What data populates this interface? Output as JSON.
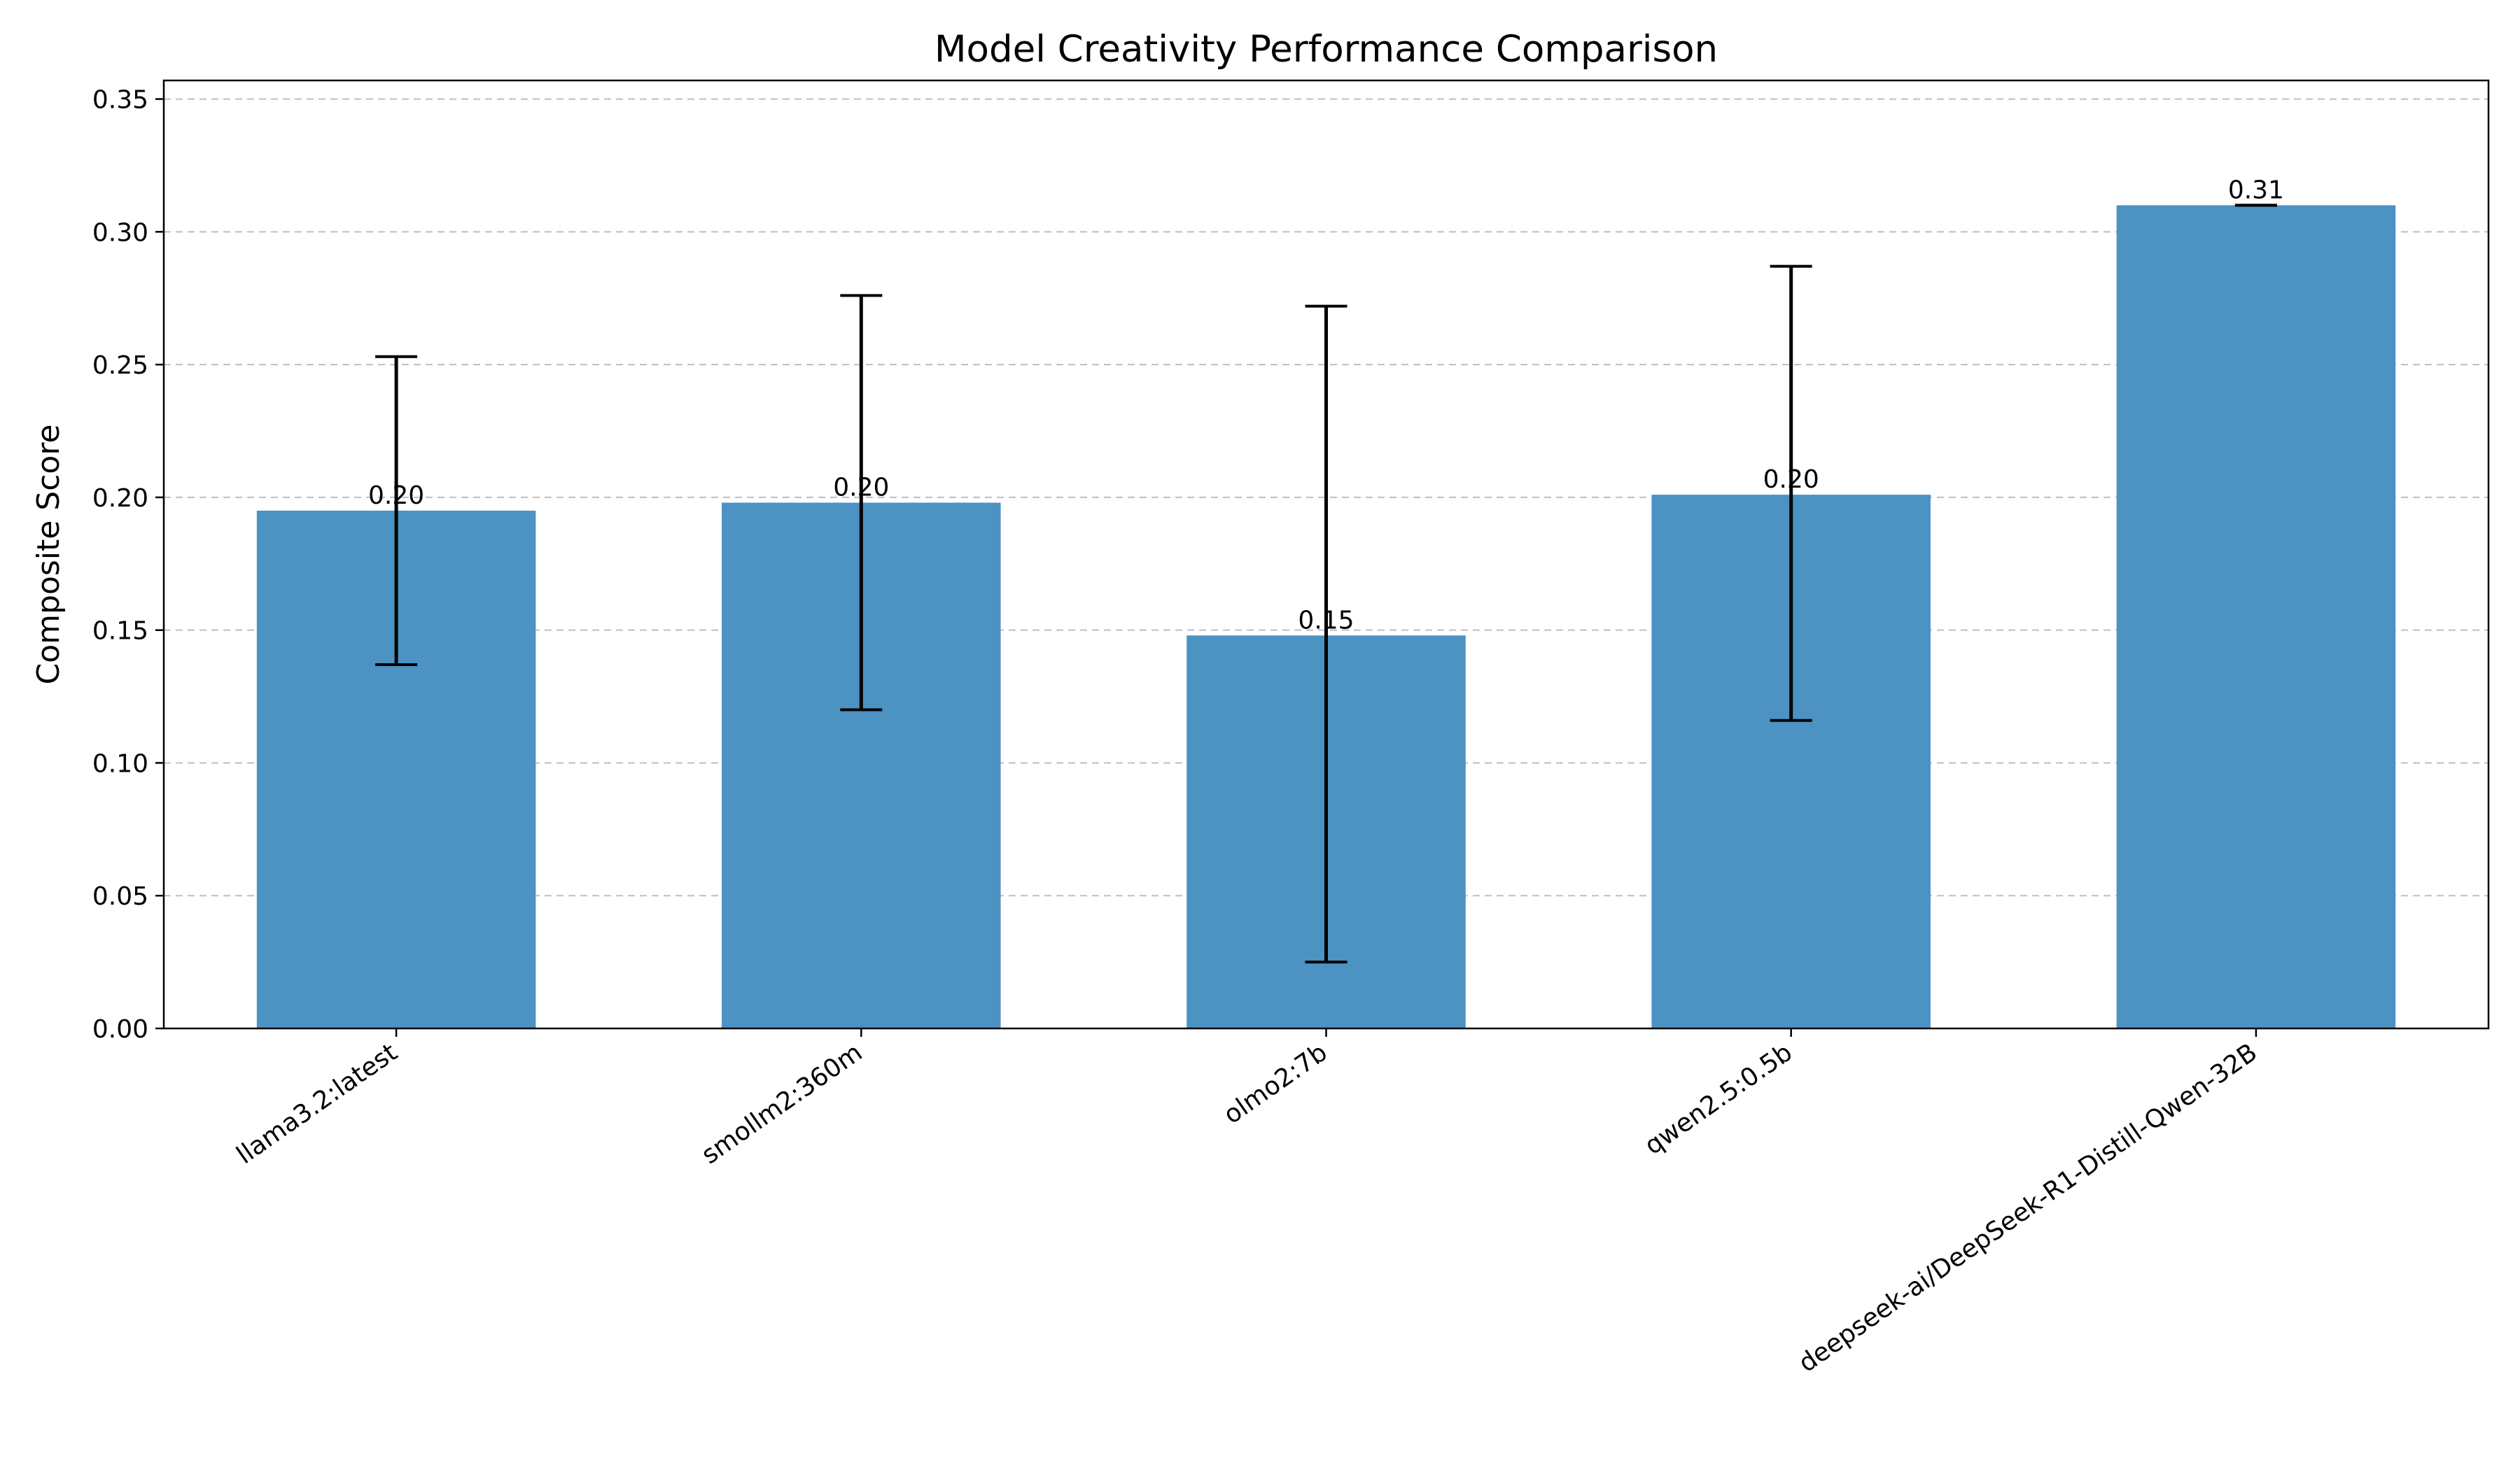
{
  "chart_data": {
    "type": "bar",
    "title": "Model Creativity Performance Comparison",
    "xlabel": "",
    "ylabel": "Composite Score",
    "categories": [
      "llama3.2:latest",
      "smollm2:360m",
      "olmo2:7b",
      "qwen2.5:0.5b",
      "deepseek-ai/DeepSeek-R1-Distill-Qwen-32B"
    ],
    "values": [
      0.195,
      0.198,
      0.148,
      0.201,
      0.31
    ],
    "value_labels": [
      "0.20",
      "0.20",
      "0.15",
      "0.20",
      "0.31"
    ],
    "error_low": [
      0.137,
      0.12,
      0.025,
      0.116,
      0.31
    ],
    "error_high": [
      0.253,
      0.276,
      0.272,
      0.287,
      0.31
    ],
    "ylim": [
      0,
      0.357
    ],
    "yticks": [
      0.0,
      0.05,
      0.1,
      0.15,
      0.2,
      0.25,
      0.3,
      0.35
    ],
    "ytick_labels": [
      "0.00",
      "0.05",
      "0.10",
      "0.15",
      "0.20",
      "0.25",
      "0.30",
      "0.35"
    ],
    "grid": "y, dashed",
    "colors": {
      "bar": "#4C92C3",
      "error": "#000000",
      "grid": "#bfbfbf"
    }
  }
}
